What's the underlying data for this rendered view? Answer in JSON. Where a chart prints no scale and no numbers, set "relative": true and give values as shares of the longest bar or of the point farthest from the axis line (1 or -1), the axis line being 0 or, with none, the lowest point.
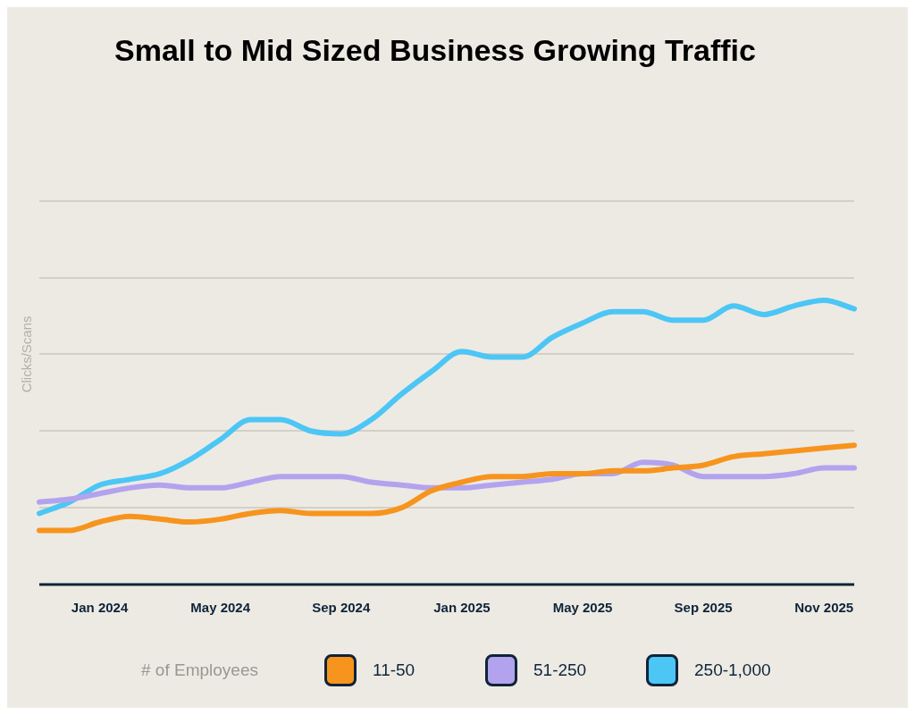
{
  "chart_data": {
    "type": "line",
    "title": "Small to Mid Sized Business Growing Traffic",
    "ylabel": "Clicks/Scans",
    "legend_title": "# of Employees",
    "relative": true,
    "grid": "y",
    "legend": "bottom",
    "marker": "none",
    "line_style": "solid",
    "categories": [
      null,
      null,
      "Jan 2024",
      null,
      null,
      null,
      "May 2024",
      null,
      null,
      null,
      "Sep 2024",
      null,
      null,
      null,
      "Jan 2025",
      null,
      null,
      null,
      "May 2025",
      null,
      null,
      null,
      "Sep 2025",
      null,
      null,
      null,
      "Nov 2025",
      null
    ],
    "series": [
      {
        "name": "11-50",
        "color": "#f7941d",
        "values": [
          0.19,
          0.19,
          0.22,
          0.24,
          0.23,
          0.22,
          0.23,
          0.25,
          0.26,
          0.25,
          0.25,
          0.25,
          0.27,
          0.33,
          0.36,
          0.38,
          0.38,
          0.39,
          0.39,
          0.4,
          0.4,
          0.41,
          0.42,
          0.45,
          0.46,
          0.47,
          0.48,
          0.49
        ]
      },
      {
        "name": "51-250",
        "color": "#b3a3ee",
        "values": [
          0.29,
          0.3,
          0.32,
          0.34,
          0.35,
          0.34,
          0.34,
          0.36,
          0.38,
          0.38,
          0.38,
          0.36,
          0.35,
          0.34,
          0.34,
          0.35,
          0.36,
          0.37,
          0.39,
          0.39,
          0.43,
          0.42,
          0.38,
          0.38,
          0.38,
          0.39,
          0.41,
          0.41
        ]
      },
      {
        "name": "250-1,000",
        "color": "#4cc6f5",
        "values": [
          0.25,
          0.29,
          0.35,
          0.37,
          0.39,
          0.44,
          0.51,
          0.58,
          0.58,
          0.54,
          0.53,
          0.58,
          0.67,
          0.75,
          0.82,
          0.8,
          0.8,
          0.87,
          0.92,
          0.96,
          0.96,
          0.93,
          0.93,
          0.98,
          0.95,
          0.98,
          1,
          0.97
        ]
      }
    ]
  }
}
